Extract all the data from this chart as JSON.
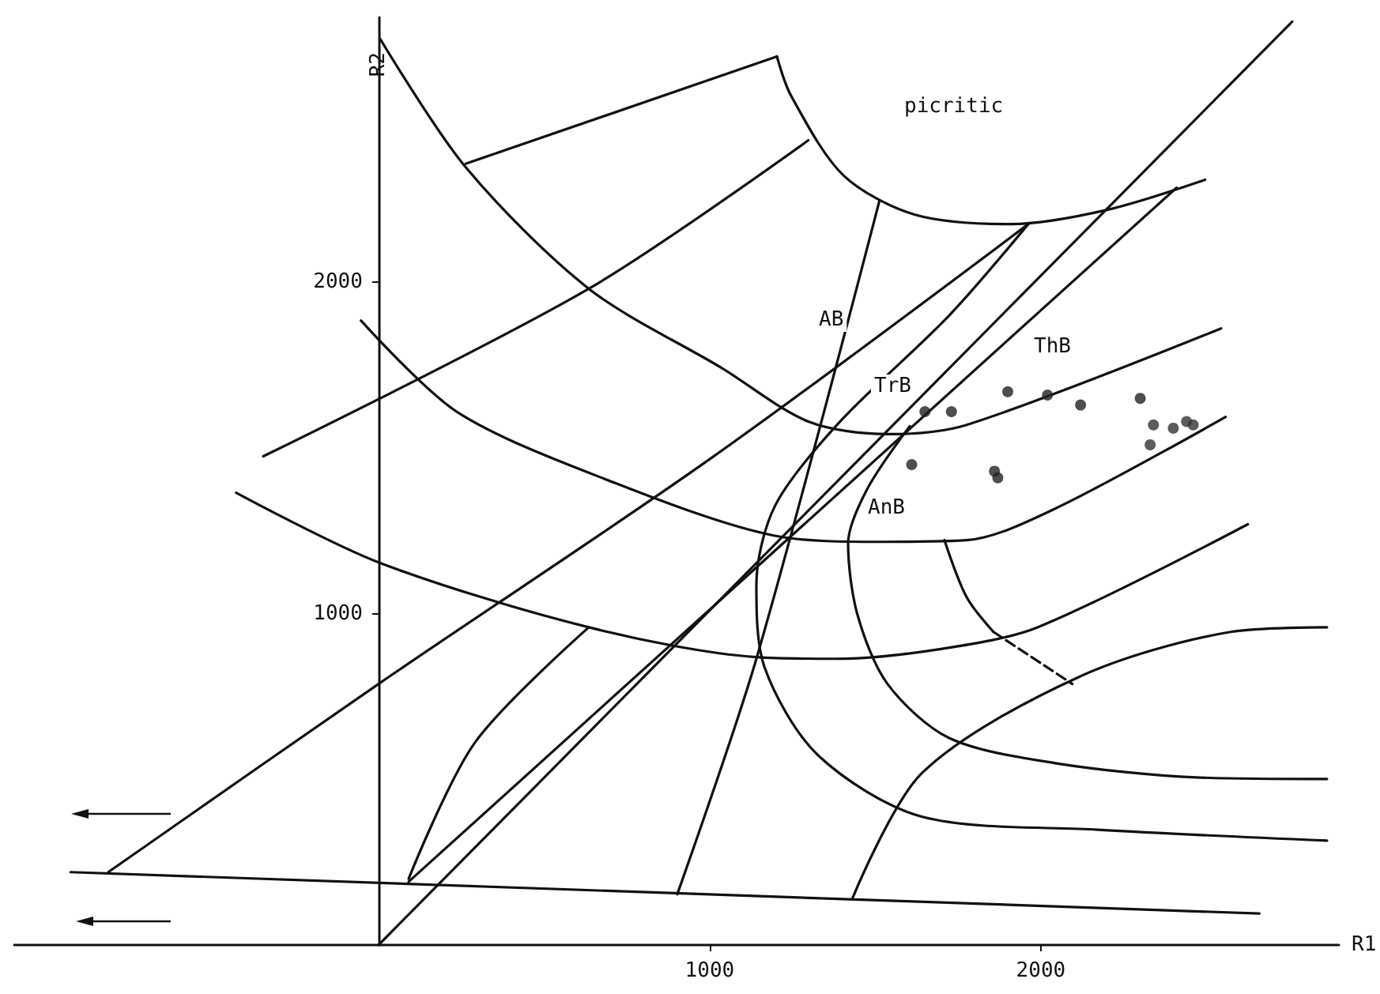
{
  "chart_data": {
    "type": "scatter",
    "xlabel": "R1",
    "ylabel": "R2",
    "xlim": [
      -1100,
      2900
    ],
    "ylim": [
      0,
      2800
    ],
    "xticks": [
      1000,
      2000
    ],
    "yticks": [
      1000,
      2000
    ],
    "grid": false,
    "annotations": [
      "picritic",
      "AB",
      "TrB",
      "ThB",
      "AnB"
    ],
    "series": [
      {
        "type": "line",
        "color": "#111111",
        "marker": "none",
        "line_style": "solid",
        "x": [
          -930,
          2660
        ],
        "values": [
          220,
          95
        ]
      },
      {
        "type": "line",
        "color": "#111111",
        "marker": "none",
        "line_style": "solid",
        "x": [
          0,
          2759
        ],
        "values": [
          0,
          2787
        ]
      },
      {
        "type": "line",
        "color": "#111111",
        "marker": "none",
        "line_style": "solid",
        "x": [
          91,
          2410
        ],
        "values": [
          191,
          2286
        ]
      },
      {
        "type": "line",
        "color": "#111111",
        "marker": "none",
        "line_style": "solid",
        "x": [
          -816,
          0,
          1005,
          1962
        ],
        "values": [
          220,
          788,
          1470,
          2176
        ]
      },
      {
        "type": "line",
        "color": "#111111",
        "marker": "none",
        "line_style": "solid",
        "x": [
          91,
          291,
          635
        ],
        "values": [
          200,
          611,
          959
        ]
      },
      {
        "type": "line",
        "color": "#111111",
        "marker": "none",
        "line_style": "solid",
        "x": [
          5,
          263,
          635,
          1036,
          1298,
          1537,
          1776,
          2544
        ],
        "values": [
          2735,
          2348,
          1981,
          1742,
          1580,
          1542,
          1570,
          1861
        ]
      },
      {
        "type": "line",
        "color": "#111111",
        "marker": "none",
        "line_style": "solid",
        "x": [
          -53,
          239,
          716,
          1193,
          1513,
          1776,
          2043,
          2558
        ],
        "values": [
          1885,
          1608,
          1394,
          1236,
          1217,
          1222,
          1317,
          1594
        ]
      },
      {
        "type": "line",
        "color": "#111111",
        "marker": "none",
        "line_style": "solid",
        "x": [
          -430,
          0,
          635,
          1141,
          1379,
          1694,
          1990,
          2625
        ],
        "values": [
          1365,
          1155,
          959,
          869,
          864,
          893,
          959,
          1270
        ]
      },
      {
        "type": "line",
        "color": "#111111",
        "marker": "none",
        "line_style": "solid",
        "x": [
          1203,
          1246,
          1403,
          1618,
          1909,
          2200,
          2496
        ],
        "values": [
          2682,
          2563,
          2324,
          2205,
          2176,
          2219,
          2310
        ]
      },
      {
        "type": "line",
        "color": "#111111",
        "marker": "none",
        "line_style": "solid",
        "x": [
          263,
          1203
        ],
        "values": [
          2358,
          2682
        ]
      },
      {
        "type": "line",
        "color": "#111111",
        "marker": "none",
        "line_style": "solid",
        "x": [
          -348,
          635,
          1298
        ],
        "values": [
          1475,
          1981,
          2429
        ]
      },
      {
        "type": "line",
        "color": "#111111",
        "marker": "none",
        "line_style": "solid",
        "x": [
          902,
          1141,
          1513
        ],
        "values": [
          153,
          864,
          2248
        ]
      },
      {
        "type": "line",
        "color": "#111111",
        "marker": "none",
        "line_style": "solid",
        "x": [
          1432,
          1642,
          2119,
          2573,
          2864
        ],
        "values": [
          143,
          520,
          811,
          945,
          959
        ]
      },
      {
        "type": "line",
        "color": "#111111",
        "marker": "none",
        "line_style": "solid",
        "x": [
          1962,
          1723,
          1389,
          1198,
          1141,
          1165,
          1327,
          1642,
          2172,
          2864
        ],
        "values": [
          2176,
          1900,
          1575,
          1327,
          1088,
          840,
          573,
          387,
          348,
          315
        ]
      },
      {
        "type": "line",
        "color": "#111111",
        "marker": "none",
        "line_style": "solid",
        "x": [
          1604,
          1475,
          1418,
          1446,
          1537,
          1723,
          2043,
          2468,
          2864
        ],
        "values": [
          1566,
          1375,
          1212,
          998,
          788,
          625,
          549,
          506,
          501
        ]
      },
      {
        "type": "line",
        "color": "#111111",
        "marker": "none",
        "line_style": "solid",
        "x": [
          1709,
          1776,
          1857
        ],
        "values": [
          1222,
          1050,
          945
        ]
      },
      {
        "type": "line",
        "color": "#111111",
        "marker": "none",
        "line_style": "dashed",
        "x": [
          1857,
          2095
        ],
        "values": [
          945,
          788
        ]
      },
      {
        "color": "#222222",
        "marker": "circle",
        "x": [
          1650,
          1730,
          1900,
          2020,
          2120,
          2300,
          1610,
          1860,
          1870
        ],
        "values": [
          1610,
          1610,
          1670,
          1660,
          1630,
          1650,
          1450,
          1430,
          1410
        ]
      },
      {
        "color": "#333333",
        "marker": "circle",
        "x": [
          2340,
          2400,
          2440,
          2460,
          2330
        ],
        "values": [
          1570,
          1560,
          1580,
          1570,
          1510
        ]
      }
    ]
  }
}
